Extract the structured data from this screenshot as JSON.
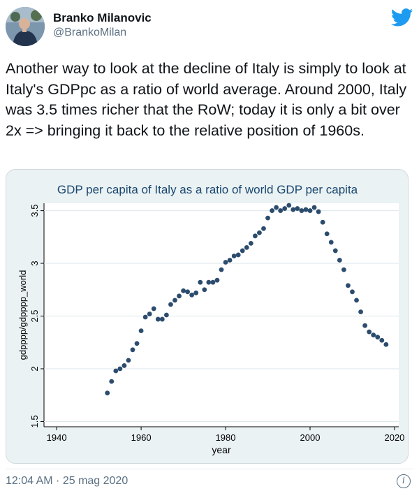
{
  "author": {
    "name": "Branko Milanovic",
    "handle": "@BrankoMilan"
  },
  "tweet": {
    "text": "Another way to look at the decline of Italy is simply to look at Italy's GDPpc as a ratio of world average. Around 2000, Italy was 3.5 times richer that the RoW; today it is only a bit over 2x => bringing it back to the relative position of 1960s.",
    "timestamp": "12:04 AM · 25 mag 2020"
  },
  "icons": {
    "bird": "twitter-bird-icon",
    "info": "info-icon",
    "info_glyph": "i"
  },
  "colors": {
    "brand": "#1d9bf0",
    "chart_bg": "#eaf2f3",
    "plot_bg": "#ffffff",
    "title": "#1a476f",
    "marker": "#2c4c6e"
  },
  "chart_data": {
    "type": "scatter",
    "title": "GDP per capita of Italy as a ratio of world GDP per capita",
    "xlabel": "year",
    "ylabel": "gdpppp/gdpppp_world",
    "xlim": [
      1937,
      2021
    ],
    "ylim": [
      1.45,
      3.57
    ],
    "xticks": [
      1940,
      1960,
      1980,
      2000,
      2020
    ],
    "yticks": [
      1.5,
      2,
      2.5,
      3,
      3.5
    ],
    "ytick_labels": [
      "1.5",
      "2",
      "2.5",
      "3",
      "3.5"
    ],
    "x": [
      1952,
      1953,
      1954,
      1955,
      1956,
      1957,
      1958,
      1959,
      1960,
      1961,
      1962,
      1963,
      1964,
      1965,
      1966,
      1967,
      1968,
      1969,
      1970,
      1971,
      1972,
      1973,
      1974,
      1975,
      1976,
      1977,
      1978,
      1979,
      1980,
      1981,
      1982,
      1983,
      1984,
      1985,
      1986,
      1987,
      1988,
      1989,
      1990,
      1991,
      1992,
      1993,
      1994,
      1995,
      1996,
      1997,
      1998,
      1999,
      2000,
      2001,
      2002,
      2003,
      2004,
      2005,
      2006,
      2007,
      2008,
      2009,
      2010,
      2011,
      2012,
      2013,
      2014,
      2015,
      2016,
      2017,
      2018
    ],
    "y": [
      1.77,
      1.88,
      1.98,
      2.0,
      2.03,
      2.08,
      2.18,
      2.24,
      2.36,
      2.49,
      2.52,
      2.57,
      2.47,
      2.47,
      2.51,
      2.61,
      2.65,
      2.69,
      2.74,
      2.73,
      2.7,
      2.72,
      2.82,
      2.75,
      2.82,
      2.82,
      2.84,
      2.94,
      3.01,
      3.03,
      3.07,
      3.08,
      3.12,
      3.15,
      3.19,
      3.26,
      3.29,
      3.33,
      3.43,
      3.5,
      3.53,
      3.5,
      3.52,
      3.55,
      3.51,
      3.52,
      3.5,
      3.51,
      3.5,
      3.53,
      3.49,
      3.39,
      3.28,
      3.2,
      3.12,
      3.03,
      2.94,
      2.79,
      2.73,
      2.65,
      2.54,
      2.41,
      2.35,
      2.32,
      2.3,
      2.27,
      2.23
    ]
  }
}
